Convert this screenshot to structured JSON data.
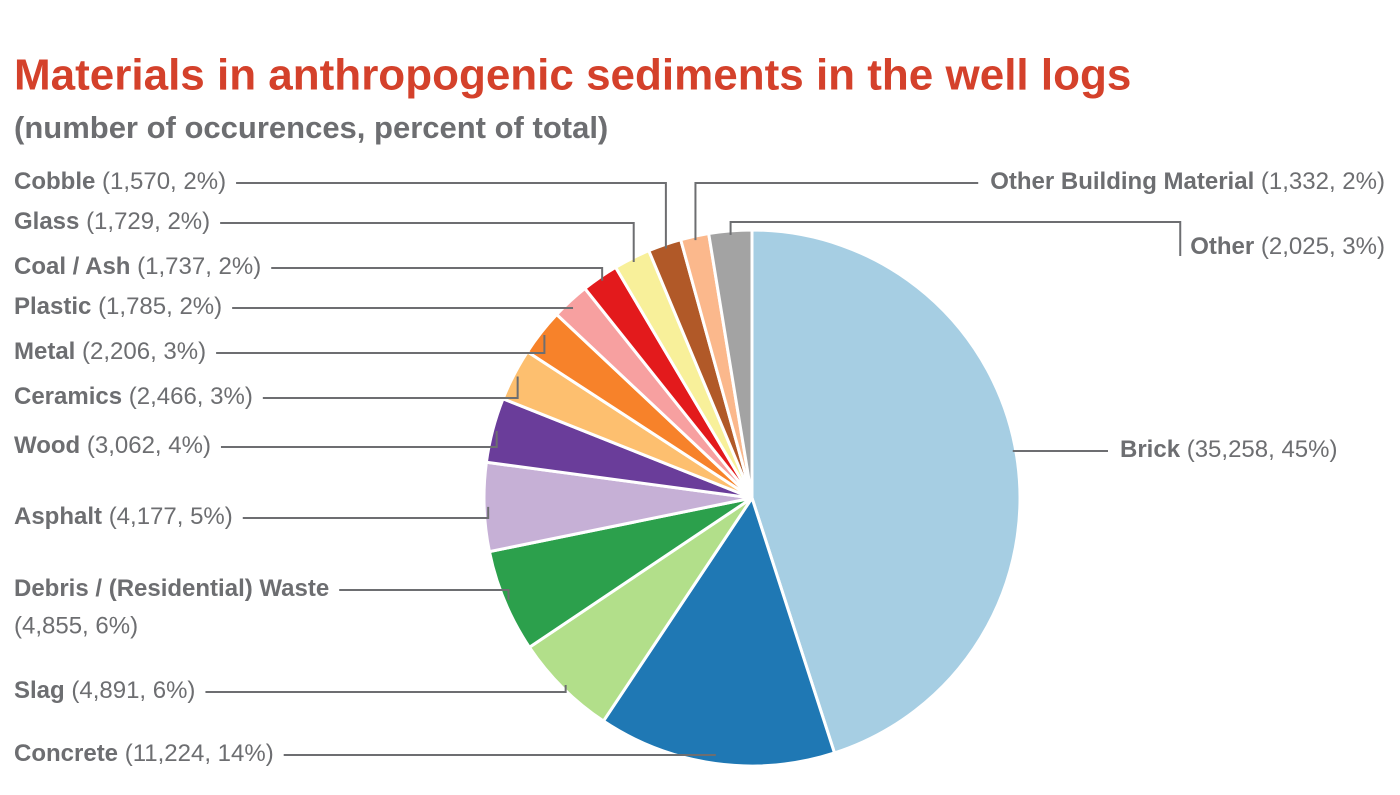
{
  "chart_data": {
    "type": "pie",
    "title": "Materials in anthropogenic sediments in the well logs",
    "subtitle": "(number of occurences, percent of total)",
    "categories": [
      "Brick",
      "Concrete",
      "Slag",
      "Debris / (Residential) Waste",
      "Asphalt",
      "Wood",
      "Ceramics",
      "Metal",
      "Plastic",
      "Coal / Ash",
      "Glass",
      "Cobble",
      "Other Building Material",
      "Other"
    ],
    "values": [
      35258,
      11224,
      4891,
      4855,
      4177,
      3062,
      2466,
      2206,
      1785,
      1737,
      1729,
      1570,
      1332,
      2025
    ],
    "value_labels": [
      "(35,258, 45%)",
      "(11,224, 14%)",
      "(4,891, 6%)",
      "(4,855, 6%)",
      "(4,177, 5%)",
      "(3,062, 4%)",
      "(2,466, 3%)",
      "(2,206, 3%)",
      "(1,785, 2%)",
      "(1,737, 2%)",
      "(1,729, 2%)",
      "(1,570, 2%)",
      "(1,332, 2%)",
      "(2,025, 3%)"
    ],
    "colors": [
      "#a6cee3",
      "#1f78b4",
      "#b2df8a",
      "#2ca04c",
      "#c6b0d6",
      "#6a3d9a",
      "#fdbf6f",
      "#f7822a",
      "#f7a0a0",
      "#e31a1c",
      "#f8f09a",
      "#b15928",
      "#fbb88c",
      "#a3a3a3"
    ]
  }
}
